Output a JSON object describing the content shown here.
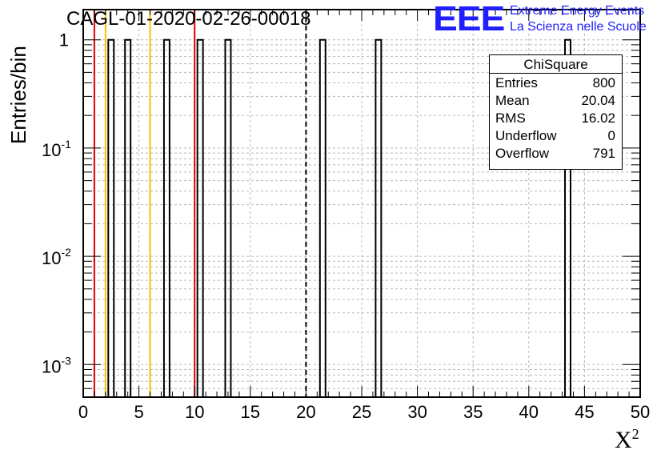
{
  "chart_data": {
    "type": "bar",
    "title": "CAGL-01-2020-02-26-00018",
    "xlabel": "X",
    "xlabel_superscript": "2",
    "ylabel": "Entries/bin",
    "xlim": [
      0,
      50
    ],
    "ylim": [
      0.0005,
      1.9
    ],
    "y_scale": "log",
    "x_ticks": [
      0,
      5,
      10,
      15,
      20,
      25,
      30,
      35,
      40,
      45,
      50
    ],
    "y_ticks": [
      {
        "value": 0.001,
        "base": "10",
        "exp": "-3"
      },
      {
        "value": 0.01,
        "base": "10",
        "exp": "-2"
      },
      {
        "value": 0.1,
        "base": "10",
        "exp": "-1"
      },
      {
        "value": 1,
        "base": "",
        "exp": "",
        "label": "1"
      }
    ],
    "bin_width": 0.5,
    "bins": [
      {
        "x": 2.5,
        "value": 1
      },
      {
        "x": 4.0,
        "value": 1
      },
      {
        "x": 7.5,
        "value": 1
      },
      {
        "x": 10.5,
        "value": 1
      },
      {
        "x": 13.0,
        "value": 1
      },
      {
        "x": 21.5,
        "value": 1
      },
      {
        "x": 26.5,
        "value": 1
      },
      {
        "x": 43.5,
        "value": 1
      }
    ],
    "vertical_lines": [
      {
        "x": 1.0,
        "color": "#e00000",
        "style": "solid"
      },
      {
        "x": 2.0,
        "color": "#f2c300",
        "style": "solid"
      },
      {
        "x": 6.0,
        "color": "#f2c300",
        "style": "solid"
      },
      {
        "x": 10.0,
        "color": "#e00000",
        "style": "solid"
      },
      {
        "x": 20.0,
        "color": "#000000",
        "style": "dashed"
      }
    ],
    "grid": true,
    "grid_style": "dashed",
    "stats_box": {
      "title": "ChiSquare",
      "rows": [
        {
          "label": "Entries",
          "value": "800"
        },
        {
          "label": "Mean",
          "value": "20.04"
        },
        {
          "label": "RMS",
          "value": "16.02"
        },
        {
          "label": "Underflow",
          "value": "0"
        },
        {
          "label": "Overflow",
          "value": "791"
        }
      ],
      "placement": "top-right"
    }
  },
  "logo": {
    "mark": "EEE",
    "line1": "Extreme Energy Events",
    "line2": "La Scienza nelle Scuole",
    "color": "#1f1fff"
  }
}
